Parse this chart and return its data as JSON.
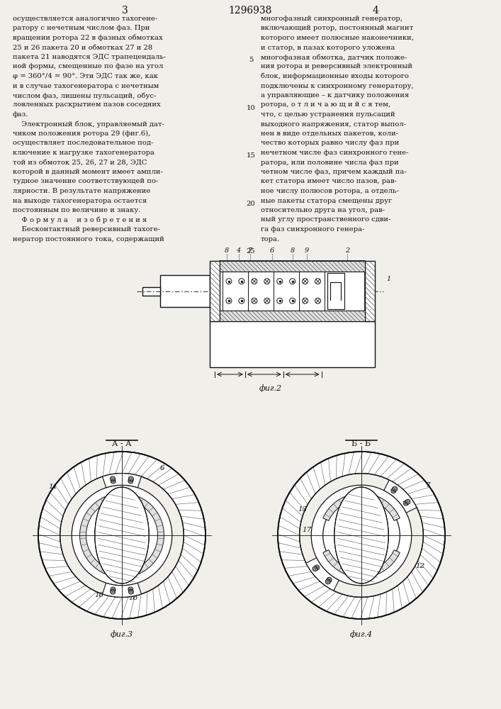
{
  "page_number_left": "3",
  "page_number_center": "1296938",
  "page_number_right": "4",
  "col_left_text": [
    "осуществляется аналогично тахогене-",
    "ратору с нечетным числом фаз. При",
    "вращении ротора 22 в фазных обмотках",
    "25 и 26 пакета 20 и обмотках 27 и 28",
    "пакета 21 наводятся ЭДС трапецеидаль-",
    "ной формы, смещенные по фазе на угол",
    "φ = 360°/4 = 90°. Эти ЭДС так же, как",
    "и в случае тахогенератора с нечетным",
    "числом фаз, лишены пульсаций, обус-",
    "ловленных раскрытием пазов соседних",
    "фаз.",
    "    Электронный блок, управляемый дат-",
    "чиком положения ротора 29 (фиг.6),",
    "осуществляет последовательное под-",
    "ключение к нагрузке тахогенератора",
    "той из обмоток 25, 26, 27 и 28, ЭДС",
    "которой в данный момент имеет ампли-",
    "тудное значение соответствующей по-",
    "лярности. В результате напряжение",
    "на выходе тахогенератора остается",
    "постоянным по величине и знаку.",
    "    Ф о р м у л а    и з о б р е т е н и я",
    "    Бесконтактный реверсивный тахоге-",
    "нератор постоянного тока, содержащий"
  ],
  "col_right_text": [
    "многофазный синхронный генератор,",
    "включающий ротор, постоянный магнит",
    "которого имеет полюсные наконечники,",
    "и статор, в пазах которого уложена",
    "многофазная обмотка, датчик положе-",
    "ния ротора и реверсивный электронный",
    "блок, информационные входы которого",
    "подключены к синхронному генератору,",
    "а управляющие – к датчику положения",
    "ротора, о т л и ч а ю щ и й с я тем,",
    "что, с целью устранения пульсаций",
    "выходного напряжения, статор выпол-",
    "нен в виде отдельных пакетов, коли-",
    "чество которых равно числу фаз при",
    "нечетном числе фаз синхронного гене-",
    "ратора, или половине числа фаз при",
    "четном числе фаз, причем каждый па-",
    "кет статора имеет число пазов, рав-",
    "ное числу полюсов ротора, а отдель-",
    "ные пакеты статора смещены друг",
    "относительно друга на угол, рав-",
    "ный углу пространственного сдви-",
    "га фаз синхронного генера-",
    "тора."
  ],
  "background_color": "#f0efea",
  "text_color": "#111111",
  "fig2_caption": "фиг.2",
  "fig3_caption": "фиг.3",
  "fig4_caption": "фиг.4",
  "fig3_label": "А - А",
  "fig4_label": "Б - Б"
}
